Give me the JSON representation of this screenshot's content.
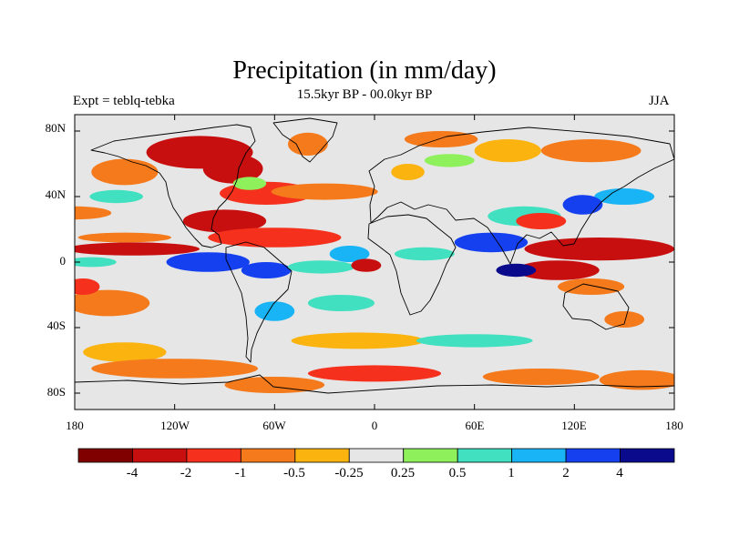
{
  "chart_data": {
    "type": "heatmap",
    "title": "Precipitation (in mm/day)",
    "subtitle": "15.5kyr BP - 00.0kyr BP",
    "left_label": "Expt = teblq-tebka",
    "right_label": "JJA",
    "variable": "Precipitation",
    "units": "mm/day",
    "x_ticks": [
      "180",
      "120W",
      "60W",
      "0",
      "60E",
      "120E",
      "180"
    ],
    "y_ticks": [
      "80N",
      "40N",
      "0",
      "40S",
      "80S"
    ],
    "xlim": [
      -180,
      180
    ],
    "ylim": [
      -90,
      90
    ],
    "colorbar": {
      "colors": [
        "#800000",
        "#c80f0f",
        "#f5301c",
        "#f47a1c",
        "#fbb30f",
        "#e6e6e6",
        "#8ef05a",
        "#40e0c0",
        "#19b4f5",
        "#1540f0",
        "#0a0a8c"
      ],
      "labels": [
        "-4",
        "-2",
        "-1",
        "-0.5",
        "-0.25",
        "0.25",
        "0.5",
        "1",
        "2",
        "4"
      ]
    },
    "anomaly_regions": [
      {
        "lon": -105,
        "lat": 67,
        "rlon": 32,
        "rlat": 10,
        "level": 1
      },
      {
        "lon": -85,
        "lat": 57,
        "rlon": 18,
        "rlat": 9,
        "level": 1
      },
      {
        "lon": -40,
        "lat": 72,
        "rlon": 12,
        "rlat": 7,
        "level": 3
      },
      {
        "lon": 40,
        "lat": 75,
        "rlon": 22,
        "rlat": 5,
        "level": 3
      },
      {
        "lon": 80,
        "lat": 68,
        "rlon": 20,
        "rlat": 7,
        "level": 4
      },
      {
        "lon": 130,
        "lat": 68,
        "rlon": 30,
        "rlat": 7,
        "level": 3
      },
      {
        "lon": -150,
        "lat": 55,
        "rlon": 20,
        "rlat": 8,
        "level": 3
      },
      {
        "lon": 20,
        "lat": 55,
        "rlon": 10,
        "rlat": 5,
        "level": 4
      },
      {
        "lon": -65,
        "lat": 42,
        "rlon": 28,
        "rlat": 7,
        "level": 2
      },
      {
        "lon": -30,
        "lat": 43,
        "rlon": 32,
        "rlat": 5,
        "level": 3
      },
      {
        "lon": -75,
        "lat": 48,
        "rlon": 10,
        "rlat": 4,
        "level": 6
      },
      {
        "lon": -155,
        "lat": 40,
        "rlon": 16,
        "rlat": 4,
        "level": 7
      },
      {
        "lon": 150,
        "lat": 40,
        "rlon": 18,
        "rlat": 5,
        "level": 8
      },
      {
        "lon": 125,
        "lat": 35,
        "rlon": 12,
        "rlat": 6,
        "level": 9
      },
      {
        "lon": 90,
        "lat": 28,
        "rlon": 22,
        "rlat": 6,
        "level": 7
      },
      {
        "lon": -180,
        "lat": 30,
        "rlon": 22,
        "rlat": 4,
        "level": 3
      },
      {
        "lon": 45,
        "lat": 62,
        "rlon": 15,
        "rlat": 4,
        "level": 6
      },
      {
        "lon": -90,
        "lat": 25,
        "rlon": 25,
        "rlat": 7,
        "level": 1
      },
      {
        "lon": -60,
        "lat": 15,
        "rlon": 40,
        "rlat": 6,
        "level": 2
      },
      {
        "lon": -145,
        "lat": 8,
        "rlon": 40,
        "rlat": 4,
        "level": 1
      },
      {
        "lon": -150,
        "lat": 15,
        "rlon": 28,
        "rlat": 3,
        "level": 3
      },
      {
        "lon": -170,
        "lat": 0,
        "rlon": 15,
        "rlat": 3,
        "level": 7
      },
      {
        "lon": -100,
        "lat": 0,
        "rlon": 25,
        "rlat": 6,
        "level": 9
      },
      {
        "lon": -65,
        "lat": -5,
        "rlon": 15,
        "rlat": 5,
        "level": 9
      },
      {
        "lon": -32,
        "lat": -3,
        "rlon": 20,
        "rlat": 4,
        "level": 7
      },
      {
        "lon": -15,
        "lat": 5,
        "rlon": 12,
        "rlat": 5,
        "level": 8
      },
      {
        "lon": -5,
        "lat": -2,
        "rlon": 9,
        "rlat": 4,
        "level": 1
      },
      {
        "lon": 30,
        "lat": 5,
        "rlon": 18,
        "rlat": 4,
        "level": 7
      },
      {
        "lon": 70,
        "lat": 12,
        "rlon": 22,
        "rlat": 6,
        "level": 9
      },
      {
        "lon": 100,
        "lat": 25,
        "rlon": 15,
        "rlat": 5,
        "level": 2
      },
      {
        "lon": 135,
        "lat": 8,
        "rlon": 45,
        "rlat": 7,
        "level": 1
      },
      {
        "lon": 110,
        "lat": -5,
        "rlon": 25,
        "rlat": 6,
        "level": 1
      },
      {
        "lon": 85,
        "lat": -5,
        "rlon": 12,
        "rlat": 4,
        "level": 10
      },
      {
        "lon": 130,
        "lat": -15,
        "rlon": 20,
        "rlat": 5,
        "level": 3
      },
      {
        "lon": -160,
        "lat": -25,
        "rlon": 25,
        "rlat": 8,
        "level": 3
      },
      {
        "lon": -175,
        "lat": -15,
        "rlon": 10,
        "rlat": 5,
        "level": 2
      },
      {
        "lon": -20,
        "lat": -25,
        "rlon": 20,
        "rlat": 5,
        "level": 7
      },
      {
        "lon": -60,
        "lat": -30,
        "rlon": 12,
        "rlat": 6,
        "level": 8
      },
      {
        "lon": -10,
        "lat": -48,
        "rlon": 40,
        "rlat": 5,
        "level": 4
      },
      {
        "lon": -150,
        "lat": -55,
        "rlon": 25,
        "rlat": 6,
        "level": 4
      },
      {
        "lon": 60,
        "lat": -48,
        "rlon": 35,
        "rlat": 4,
        "level": 7
      },
      {
        "lon": 150,
        "lat": -35,
        "rlon": 12,
        "rlat": 5,
        "level": 3
      },
      {
        "lon": -120,
        "lat": -65,
        "rlon": 50,
        "rlat": 6,
        "level": 3
      },
      {
        "lon": 0,
        "lat": -68,
        "rlon": 40,
        "rlat": 5,
        "level": 2
      },
      {
        "lon": 100,
        "lat": -70,
        "rlon": 35,
        "rlat": 5,
        "level": 3
      },
      {
        "lon": -60,
        "lat": -75,
        "rlon": 30,
        "rlat": 5,
        "level": 3
      },
      {
        "lon": 160,
        "lat": -72,
        "rlon": 25,
        "rlat": 6,
        "level": 3
      }
    ]
  }
}
